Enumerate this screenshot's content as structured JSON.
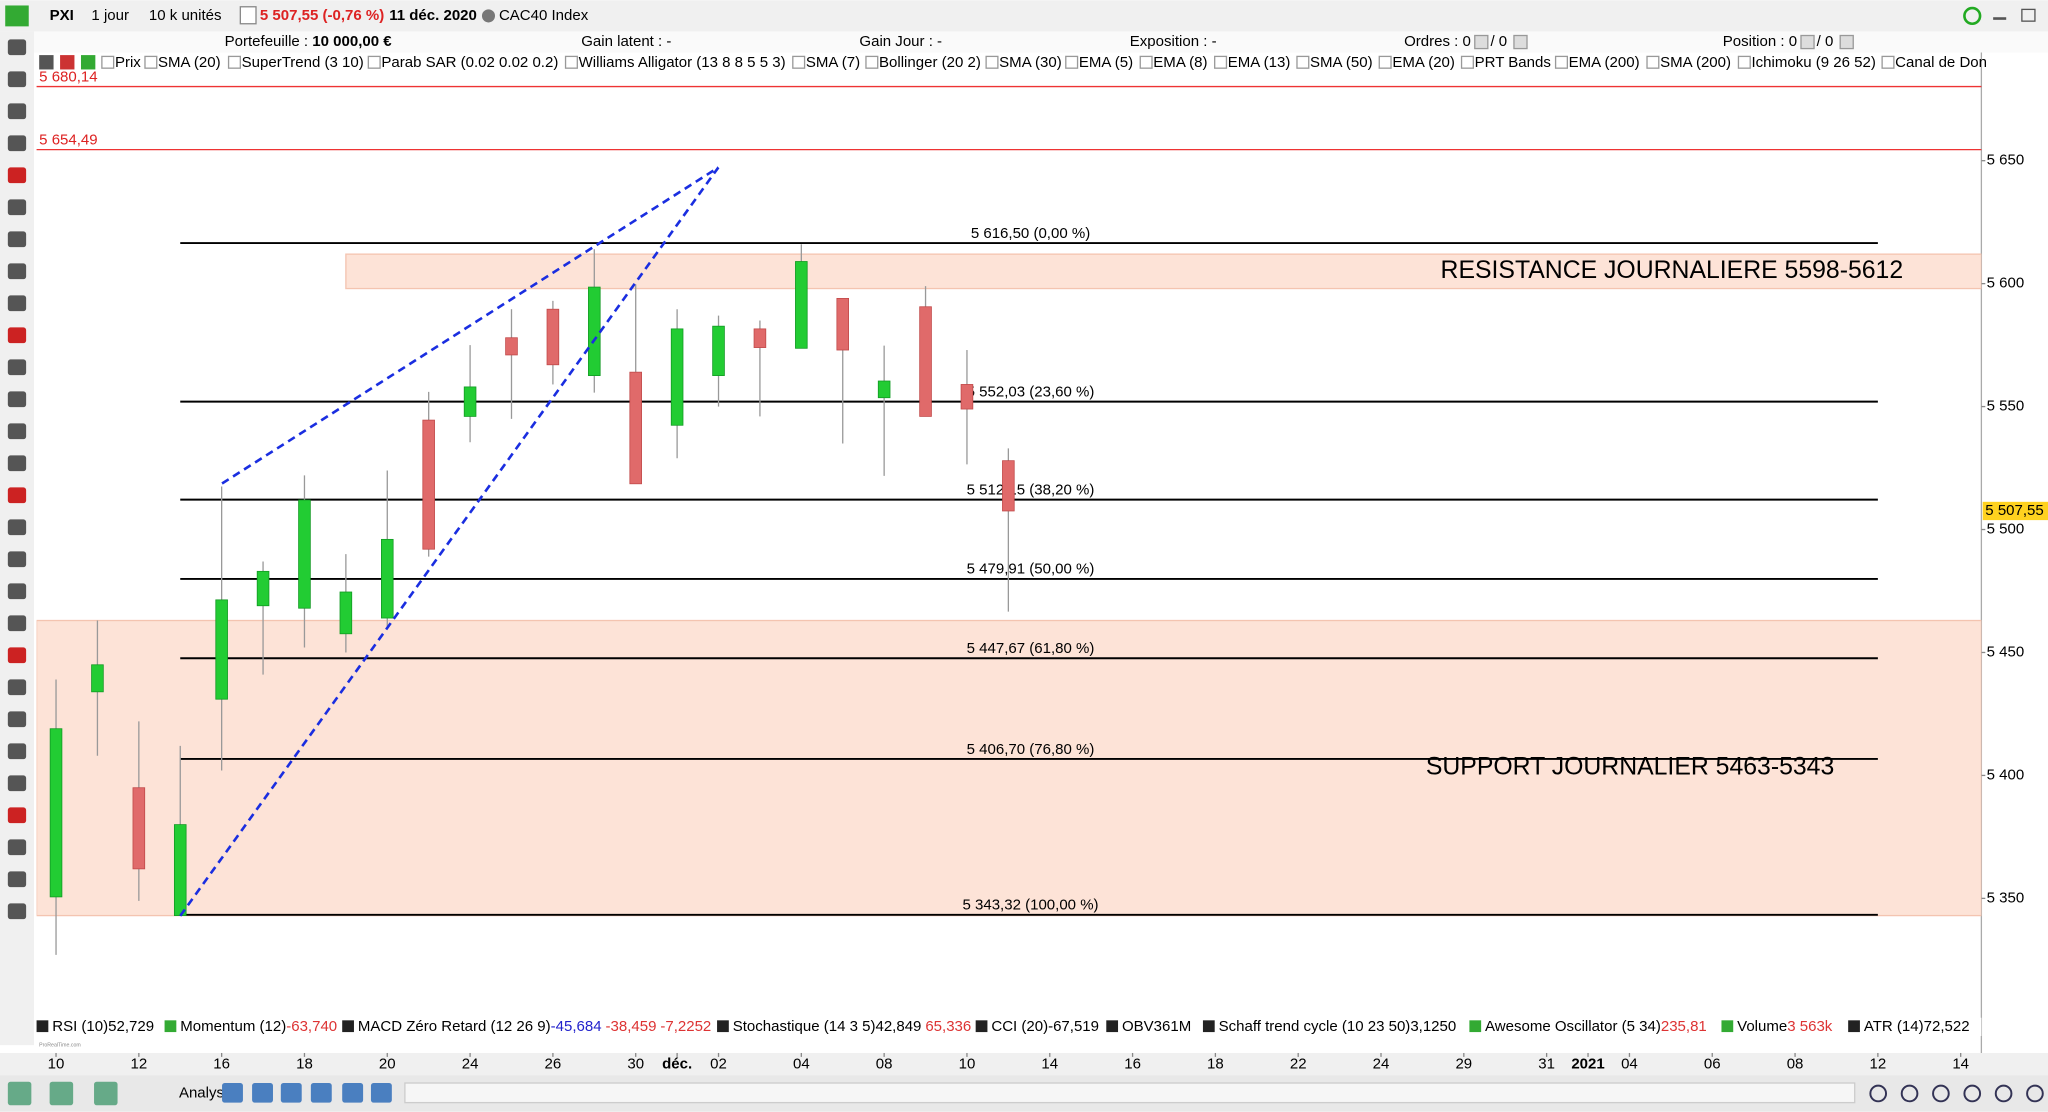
{
  "toolbar": {
    "symbol": "PXI",
    "period": "1 jour",
    "size": "10 k unités",
    "price_change": "5 507,55 (-0,76 %)",
    "date": "11 déc. 2020",
    "instrument": "CAC40 Index"
  },
  "account": [
    {
      "label": "Portefeuille :",
      "value": "10 000,00 €"
    },
    {
      "label": "Gain latent :",
      "value": "-"
    },
    {
      "label": "Gain Jour :",
      "value": "-"
    },
    {
      "label": "Exposition :",
      "value": "-"
    },
    {
      "label": "Ordres :",
      "value": "0",
      "value2": "/ 0"
    },
    {
      "label": "Position :",
      "value": "0",
      "value2": "/ 0"
    }
  ],
  "overlays": [
    "Prix",
    "SMA (20)",
    "SuperTrend (3 10)",
    "Parab SAR (0.02 0.02 0.2)",
    "Williams Alligator (13 8 8 5 5 3)",
    "SMA (7)",
    "Bollinger (20 2)",
    "SMA (30)",
    "EMA (5)",
    "EMA (8)",
    "EMA (13)",
    "SMA (50)",
    "EMA (20)",
    "PRT Bands",
    "EMA (200)",
    "SMA (200)",
    "Ichimoku (9 26 52)",
    "Canal de Don"
  ],
  "indicators": [
    {
      "name": "RSI (10)",
      "values": [
        "52,729"
      ],
      "colors": [
        "#000"
      ]
    },
    {
      "name": "Momentum (12)",
      "values": [
        "-63,740"
      ],
      "colors": [
        "#d33"
      ]
    },
    {
      "name": "MACD Zéro Retard (12 26 9)",
      "values": [
        "-45,684",
        "-38,459",
        "-7,2252"
      ],
      "colors": [
        "#22c",
        "#d33",
        "#d33"
      ]
    },
    {
      "name": "Stochastique (14 3 5)",
      "values": [
        "42,849",
        "65,336"
      ],
      "colors": [
        "#000",
        "#d33"
      ]
    },
    {
      "name": "CCI (20)",
      "values": [
        "-67,519"
      ],
      "colors": [
        "#000"
      ]
    },
    {
      "name": "OBV",
      "values": [
        "361M"
      ],
      "colors": [
        "#000"
      ]
    },
    {
      "name": "Schaff trend cycle (10 23 50)",
      "values": [
        "3,1250"
      ],
      "colors": [
        "#000"
      ]
    },
    {
      "name": "Awesome Oscillator (5 34)",
      "values": [
        "235,81"
      ],
      "colors": [
        "#d33"
      ]
    },
    {
      "name": "Volume",
      "values": [
        "3 563k"
      ],
      "colors": [
        "#d33"
      ]
    },
    {
      "name": "ATR (14)",
      "values": [
        "72,522"
      ],
      "colors": [
        "#000"
      ]
    }
  ],
  "bottom_toolbar": {
    "analyse": "Analyser"
  },
  "chart_data": {
    "type": "candlestick",
    "open": [
      5350.6,
      5434,
      5395,
      5343,
      5431,
      5469,
      5468,
      5457.6,
      5464,
      5544.5,
      5546,
      5578,
      5589.6,
      5562.6,
      5564,
      5542.4,
      5562.6,
      5581.6,
      5573.7,
      5594,
      5553.6,
      5590.6,
      5559,
      5528
    ],
    "high": [
      5439,
      5463,
      5422,
      5412,
      5517.5,
      5487,
      5522,
      5490,
      5524,
      5556,
      5575,
      5589.6,
      5593,
      5614,
      5599.7,
      5589.6,
      5587,
      5585,
      5616,
      5594,
      5574.8,
      5599,
      5573,
      5533
    ],
    "low": [
      5327,
      5408,
      5349,
      5343,
      5402,
      5441,
      5452,
      5450,
      5460,
      5489,
      5535.5,
      5545,
      5559,
      5555.7,
      5518.6,
      5529,
      5550,
      5546,
      5573.7,
      5535,
      5521.8,
      5546,
      5526.5,
      5466.6
    ],
    "close": [
      5419,
      5445,
      5362,
      5380,
      5471.4,
      5483,
      5512,
      5474.6,
      5496,
      5492,
      5558,
      5571,
      5567,
      5598.6,
      5518.6,
      5581.6,
      5582.7,
      5574,
      5609,
      5573,
      5560.4,
      5546,
      5549,
      5507.55
    ],
    "up_color": "#22cc33",
    "down_color": "#e06a6a",
    "xlim": [
      -0.47,
      46.5
    ],
    "xticks": [
      {
        "value": 0,
        "label": "10"
      },
      {
        "value": 2,
        "label": "12"
      },
      {
        "value": 4,
        "label": "16"
      },
      {
        "value": 6,
        "label": "18"
      },
      {
        "value": 8,
        "label": "20"
      },
      {
        "value": 10,
        "label": "24"
      },
      {
        "value": 12,
        "label": "26"
      },
      {
        "value": 14,
        "label": "30"
      },
      {
        "value": 15,
        "label": "déc."
      },
      {
        "value": 16,
        "label": "02"
      },
      {
        "value": 18,
        "label": "04"
      },
      {
        "value": 20,
        "label": "08"
      },
      {
        "value": 22,
        "label": "10"
      },
      {
        "value": 24,
        "label": "14"
      },
      {
        "value": 26,
        "label": "16"
      },
      {
        "value": 28,
        "label": "18"
      },
      {
        "value": 30,
        "label": "22"
      },
      {
        "value": 32,
        "label": "24"
      },
      {
        "value": 34,
        "label": "29"
      },
      {
        "value": 36,
        "label": "31"
      },
      {
        "value": 37,
        "label": "2021"
      },
      {
        "value": 38,
        "label": "04"
      },
      {
        "value": 40,
        "label": "06"
      },
      {
        "value": 42,
        "label": "08"
      },
      {
        "value": 44,
        "label": "12"
      },
      {
        "value": 46,
        "label": "14"
      }
    ],
    "ylim": [
      5302,
      5694
    ],
    "yticks": [
      {
        "value": 5350,
        "label": "5 350"
      },
      {
        "value": 5400,
        "label": "5 400"
      },
      {
        "value": 5450,
        "label": "5 450"
      },
      {
        "value": 5500,
        "label": "5 500"
      },
      {
        "value": 5550,
        "label": "5 550"
      },
      {
        "value": 5600,
        "label": "5 600"
      },
      {
        "value": 5650,
        "label": "5 650"
      }
    ],
    "last_price": {
      "value": 5507.55,
      "label": "5 507,55"
    },
    "levels": [
      {
        "value": 5680.14,
        "label": "5 680,14"
      },
      {
        "value": 5654.49,
        "label": "5 654,49"
      }
    ],
    "fibonacci": [
      {
        "value": 5616.5,
        "label": "5 616,50 (0,00 %)"
      },
      {
        "value": 5552.03,
        "label": "5 552,03 (23,60 %)"
      },
      {
        "value": 5512.15,
        "label": "5 512,15 (38,20 %)"
      },
      {
        "value": 5479.91,
        "label": "5 479,91 (50,00 %)"
      },
      {
        "value": 5447.67,
        "label": "5 447,67 (61,80 %)"
      },
      {
        "value": 5406.7,
        "label": "5 406,70 (76,80 %)"
      },
      {
        "value": 5343.32,
        "label": "5 343,32 (100,00 %)"
      }
    ],
    "zones": [
      {
        "label": "RESISTANCE JOURNALIERE 5598-5612",
        "low": 5598,
        "high": 5612
      },
      {
        "label": "SUPPORT JOURNALIER 5463-5343",
        "low": 5343,
        "high": 5463
      }
    ]
  }
}
